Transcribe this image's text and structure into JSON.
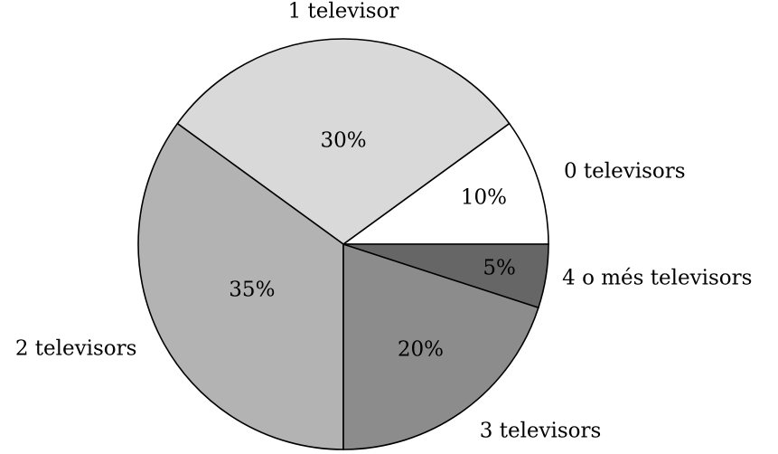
{
  "chart_data": {
    "type": "pie",
    "categories": [
      "0 televisors",
      "1 televisor",
      "2 televisors",
      "3 televisors",
      "4 o més televisors"
    ],
    "values": [
      10,
      30,
      35,
      20,
      5
    ],
    "value_labels": [
      "10%",
      "30%",
      "35%",
      "20%",
      "5%"
    ],
    "colors": [
      "#ffffff",
      "#d9d9d9",
      "#b3b3b3",
      "#8c8c8c",
      "#666666"
    ]
  }
}
